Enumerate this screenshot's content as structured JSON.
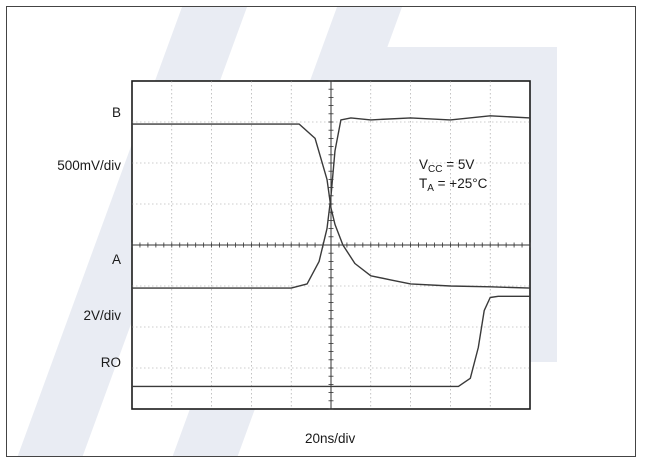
{
  "chart_data": {
    "type": "line",
    "title": "",
    "x_scale_label": "20ns/div",
    "grid": true,
    "divisions": {
      "x": 10,
      "y": 8
    },
    "y_scale_labels": [
      {
        "text": "500mV/div",
        "channel": "A/B"
      },
      {
        "text": "2V/div",
        "channel": "RO"
      }
    ],
    "channel_labels": {
      "b": "B",
      "a": "A",
      "ro": "RO"
    },
    "conditions": {
      "vcc": {
        "main": "V",
        "sub": "CC",
        "rest": " = 5V"
      },
      "ta": {
        "main": "T",
        "sub": "A",
        "rest": " = +25°C"
      }
    },
    "series": [
      {
        "name": "B",
        "x": [
          0,
          4.2,
          4.6,
          4.9,
          5.0,
          5.1,
          5.3,
          5.6,
          6.0,
          6.5,
          7.0,
          8.0,
          9.0,
          10.0
        ],
        "y": [
          6.95,
          6.95,
          6.6,
          5.6,
          4.9,
          4.5,
          4.0,
          3.55,
          3.25,
          3.15,
          3.05,
          3.0,
          2.98,
          2.95
        ]
      },
      {
        "name": "A",
        "x": [
          0,
          4.0,
          4.4,
          4.7,
          4.9,
          5.0,
          5.1,
          5.25,
          5.5,
          6.0,
          7.0,
          8.0,
          9.0,
          10.0
        ],
        "y": [
          2.95,
          2.95,
          3.05,
          3.6,
          4.4,
          5.2,
          6.3,
          7.05,
          7.1,
          7.05,
          7.1,
          7.05,
          7.15,
          7.1
        ]
      },
      {
        "name": "RO",
        "x": [
          0,
          8.2,
          8.5,
          8.7,
          8.85,
          9.0,
          9.2,
          10.0
        ],
        "y": [
          0.55,
          0.55,
          0.75,
          1.5,
          2.4,
          2.72,
          2.75,
          2.75
        ]
      }
    ]
  }
}
